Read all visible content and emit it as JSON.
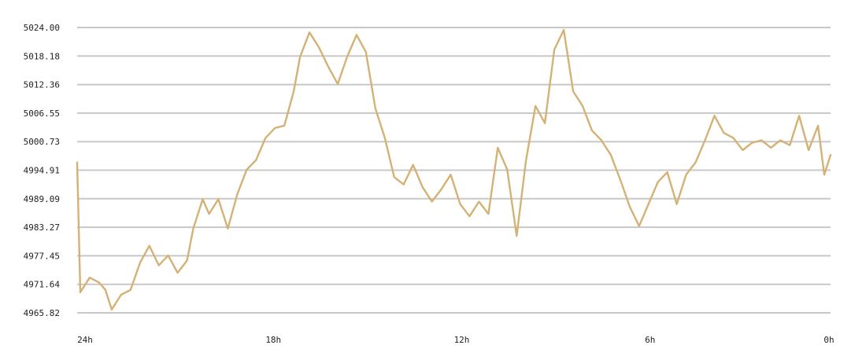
{
  "chart_data": {
    "type": "line",
    "title": "",
    "xlabel": "",
    "ylabel": "",
    "grid": true,
    "legend": "none",
    "line_color": "#d4b276",
    "grid_color": "#c8c8c8",
    "y_ticks": [
      "5024.00",
      "5018.18",
      "5012.36",
      "5006.55",
      "5000.73",
      "4994.91",
      "4989.09",
      "4983.27",
      "4977.45",
      "4971.64",
      "4965.82"
    ],
    "y_tick_values": [
      5024.0,
      5018.18,
      5012.36,
      5006.55,
      5000.73,
      4994.91,
      4989.09,
      4983.27,
      4977.45,
      4971.64,
      4965.82
    ],
    "ylim": [
      4965.82,
      5024.0
    ],
    "x_ticks": [
      {
        "label": "24h",
        "hours_ago": 24
      },
      {
        "label": "18h",
        "hours_ago": 18
      },
      {
        "label": "12h",
        "hours_ago": 12
      },
      {
        "label": "6h",
        "hours_ago": 6
      },
      {
        "label": "0h",
        "hours_ago": 0
      }
    ],
    "xlim": [
      24,
      0
    ],
    "series": [
      {
        "x_hours_ago": [
          24.0,
          23.9,
          23.6,
          23.3,
          23.1,
          22.9,
          22.6,
          22.3,
          22.0,
          21.7,
          21.4,
          21.1,
          20.8,
          20.5,
          20.3,
          20.0,
          19.8,
          19.5,
          19.2,
          18.9,
          18.6,
          18.3,
          18.0,
          17.7,
          17.4,
          17.1,
          16.9,
          16.6,
          16.3,
          16.0,
          15.7,
          15.4,
          15.1,
          14.8,
          14.5,
          14.2,
          13.9,
          13.6,
          13.3,
          13.0,
          12.7,
          12.4,
          12.1,
          11.8,
          11.5,
          11.2,
          10.9,
          10.6,
          10.3,
          10.0,
          9.7,
          9.4,
          9.1,
          8.8,
          8.5,
          8.2,
          7.9,
          7.6,
          7.3,
          7.0,
          6.7,
          6.4,
          6.1,
          5.8,
          5.5,
          5.2,
          4.9,
          4.6,
          4.3,
          4.0,
          3.7,
          3.4,
          3.1,
          2.8,
          2.5,
          2.2,
          1.9,
          1.6,
          1.3,
          1.0,
          0.7,
          0.4,
          0.2,
          0.0
        ],
        "values": [
          4996.5,
          4970.0,
          4973.0,
          4972.0,
          4970.5,
          4966.5,
          4969.5,
          4970.5,
          4976.0,
          4979.5,
          4975.5,
          4977.5,
          4974.0,
          4976.5,
          4983.0,
          4989.0,
          4986.0,
          4989.0,
          4983.0,
          4990.0,
          4995.0,
          4997.0,
          5001.5,
          5003.5,
          5004.0,
          5011.0,
          5018.0,
          5023.0,
          5020.0,
          5016.0,
          5012.5,
          5018.0,
          5022.5,
          5019.0,
          5007.5,
          5001.5,
          4993.5,
          4992.0,
          4996.0,
          4991.5,
          4988.5,
          4991.0,
          4994.0,
          4988.0,
          4985.5,
          4988.5,
          4986.0,
          4999.5,
          4995.0,
          4981.5,
          4997.0,
          5008.0,
          5004.5,
          5019.5,
          5023.5,
          5011.0,
          5008.0,
          5003.0,
          5001.0,
          4998.0,
          4993.0,
          4987.5,
          4983.5,
          4988.0,
          4992.5,
          4994.5,
          4988.0,
          4994.0,
          4996.5,
          5001.0,
          5006.0,
          5002.5,
          5001.5,
          4999.0,
          5000.5,
          5001.0,
          4999.5,
          5001.0,
          5000.0,
          5006.0,
          4999.0,
          5004.0,
          4994.0,
          4998.0
        ]
      }
    ]
  }
}
